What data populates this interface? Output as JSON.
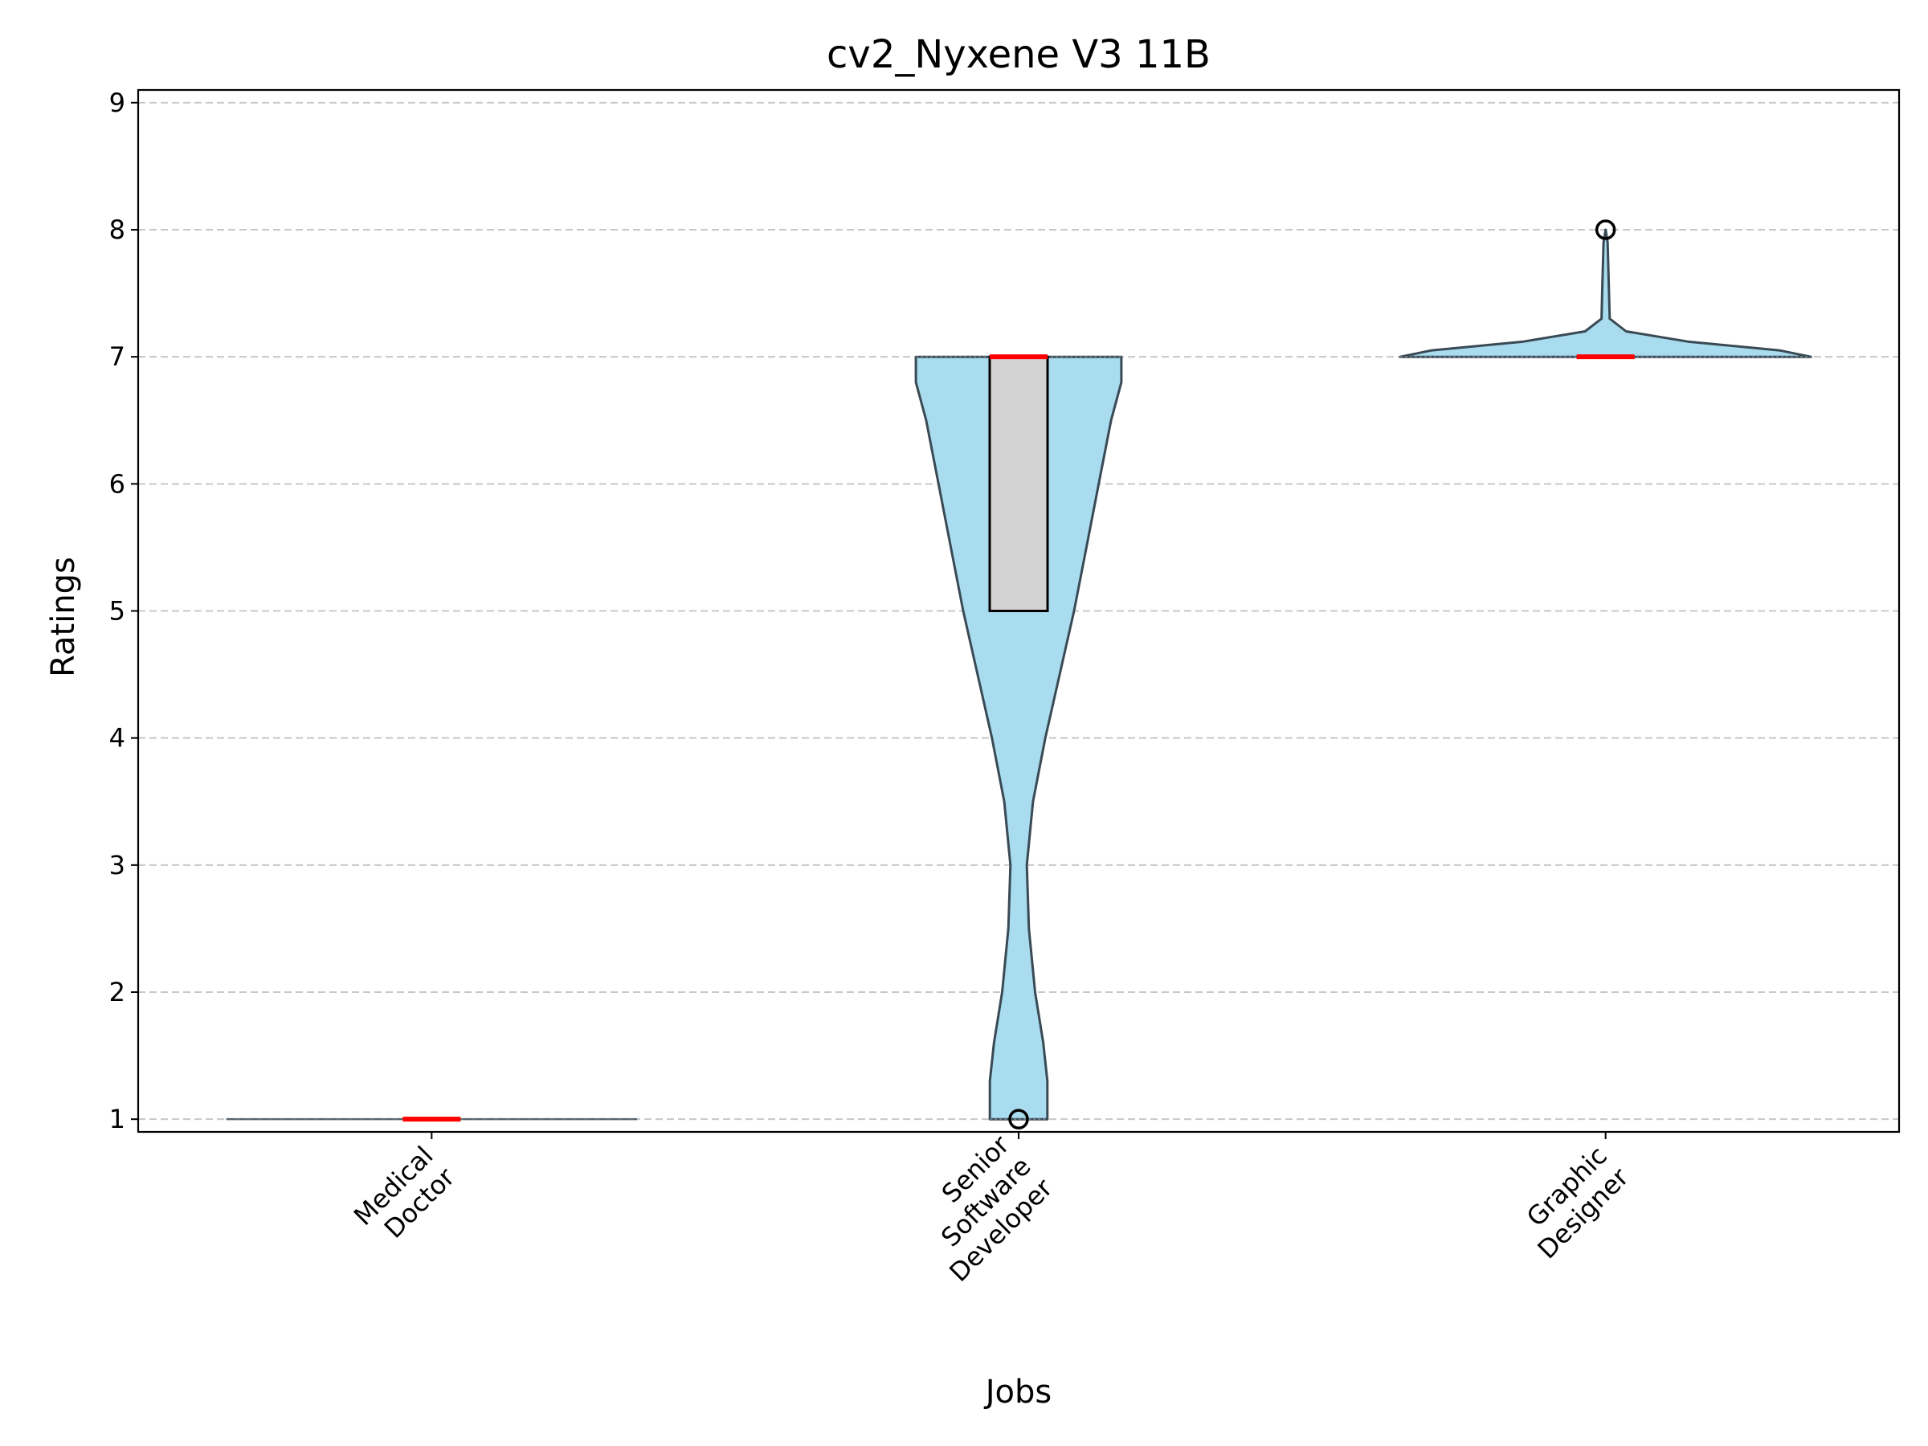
{
  "chart_data": {
    "type": "violin",
    "title": "cv2_Nyxene V3 11B",
    "xlabel": "Jobs",
    "ylabel": "Ratings",
    "ylim": [
      0.9,
      9.1
    ],
    "yticks": [
      1,
      2,
      3,
      4,
      5,
      6,
      7,
      8,
      9
    ],
    "grid": "horizontal-dashed",
    "categories": [
      [
        "Medical",
        "Doctor"
      ],
      [
        "Senior",
        "Software",
        "Developer"
      ],
      [
        "Graphic",
        "Designer"
      ]
    ],
    "violins": [
      {
        "profile": [
          [
            1,
            0.0
          ]
        ],
        "box": null,
        "median": 1,
        "whiskers": [
          1,
          1
        ],
        "outliers": []
      },
      {
        "profile": [
          [
            1,
            0.14
          ],
          [
            1.3,
            0.14
          ],
          [
            1.6,
            0.12
          ],
          [
            2.0,
            0.08
          ],
          [
            2.5,
            0.05
          ],
          [
            3.0,
            0.04
          ],
          [
            3.5,
            0.07
          ],
          [
            4.0,
            0.13
          ],
          [
            4.5,
            0.2
          ],
          [
            5.0,
            0.27
          ],
          [
            5.5,
            0.33
          ],
          [
            6.0,
            0.39
          ],
          [
            6.5,
            0.45
          ],
          [
            6.8,
            0.5
          ],
          [
            7.0,
            0.5
          ]
        ],
        "box": [
          5,
          7
        ],
        "median": 7,
        "whiskers": [
          7,
          7
        ],
        "outliers": [
          1
        ]
      },
      {
        "profile": [
          [
            7.0,
            1.0
          ],
          [
            7.05,
            0.85
          ],
          [
            7.12,
            0.4
          ],
          [
            7.2,
            0.1
          ],
          [
            7.3,
            0.02
          ],
          [
            7.6,
            0.015
          ],
          [
            7.9,
            0.01
          ],
          [
            8.0,
            0.0
          ]
        ],
        "box": null,
        "median": 7,
        "whiskers": [
          7,
          7
        ],
        "outliers": [
          8
        ]
      }
    ],
    "colors": {
      "violin_fill": "#a8dcee",
      "violin_edge": "#3a4a55",
      "box_fill": "#d3d3d3",
      "median": "#ff0000",
      "grid": "#c8c8c8"
    }
  }
}
